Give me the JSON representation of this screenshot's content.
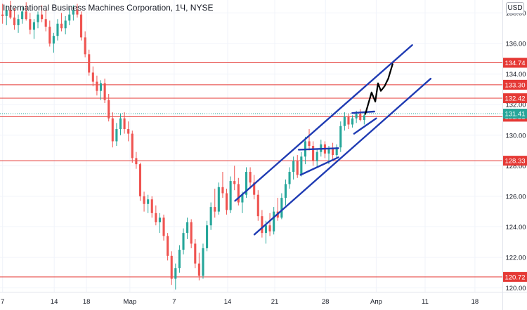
{
  "header": {
    "title": "International Business Machines Corporation, 1Ч, NYSE",
    "currency": "USD"
  },
  "colors": {
    "up": "#26a69a",
    "down": "#ef5350",
    "level_line": "#e53935",
    "channel": "#1f3bb3",
    "projection": "#000000",
    "axis_text": "#131722",
    "grid": "#f0f3fa",
    "last_price_green": "#26a69a",
    "label_red": "#e53935"
  },
  "chart_data": {
    "type": "candlestick",
    "symbol": "IBM",
    "interval": "1Ч",
    "exchange": "NYSE",
    "ylim": [
      119.75,
      138.85
    ],
    "y_ticks": [
      120.0,
      122.0,
      124.0,
      126.0,
      128.0,
      130.0,
      132.0,
      134.0,
      136.0,
      138.0
    ],
    "x_ticks": [
      "7",
      "14",
      "18",
      "Мар",
      "7",
      "14",
      "21",
      "28",
      "Апр",
      "11",
      "18"
    ],
    "x_tick_index": [
      0,
      56,
      91,
      138,
      186,
      244,
      295,
      350,
      405,
      458,
      512
    ],
    "total_bars": 540,
    "horizontal_levels": [
      134.74,
      133.3,
      132.42,
      131.21,
      128.33,
      120.72
    ],
    "last_price": 131.41,
    "candles_ohlc": [
      [
        137.9,
        138.6,
        137.3,
        137.8
      ],
      [
        137.8,
        138.5,
        137.2,
        138.2
      ],
      [
        138.2,
        138.8,
        137.6,
        137.7
      ],
      [
        137.7,
        138.3,
        136.9,
        137.2
      ],
      [
        137.2,
        137.9,
        136.7,
        137.6
      ],
      [
        137.6,
        138.4,
        137.3,
        138.1
      ],
      [
        138.1,
        138.7,
        137.5,
        137.6
      ],
      [
        137.6,
        138.0,
        136.6,
        136.9
      ],
      [
        136.9,
        137.6,
        136.3,
        137.4
      ],
      [
        137.4,
        138.1,
        137.0,
        137.9
      ],
      [
        137.9,
        138.5,
        137.4,
        137.6
      ],
      [
        137.6,
        138.2,
        136.8,
        137.1
      ],
      [
        137.1,
        137.5,
        135.8,
        136.0
      ],
      [
        136.0,
        136.7,
        135.4,
        136.5
      ],
      [
        136.5,
        137.6,
        136.2,
        137.3
      ],
      [
        137.3,
        138.0,
        136.8,
        137.0
      ],
      [
        137.0,
        137.8,
        136.6,
        137.5
      ],
      [
        137.5,
        138.3,
        137.2,
        137.9
      ],
      [
        137.9,
        138.5,
        137.5,
        138.2
      ],
      [
        138.2,
        138.6,
        137.7,
        137.9
      ],
      [
        137.9,
        138.1,
        136.2,
        136.4
      ],
      [
        136.4,
        136.8,
        135.1,
        135.3
      ],
      [
        135.3,
        135.6,
        133.9,
        134.1
      ],
      [
        134.1,
        134.5,
        133.2,
        133.5
      ],
      [
        133.5,
        133.9,
        132.6,
        132.9
      ],
      [
        132.9,
        133.6,
        132.3,
        133.4
      ],
      [
        133.4,
        133.7,
        132.1,
        132.3
      ],
      [
        132.3,
        132.7,
        130.9,
        131.1
      ],
      [
        131.1,
        131.5,
        129.2,
        129.6
      ],
      [
        129.6,
        130.8,
        129.3,
        130.4
      ],
      [
        130.4,
        131.4,
        130.0,
        131.1
      ],
      [
        131.1,
        131.5,
        130.1,
        130.4
      ],
      [
        130.4,
        130.9,
        129.6,
        130.1
      ],
      [
        130.1,
        130.3,
        128.2,
        128.5
      ],
      [
        128.5,
        128.9,
        127.8,
        128.1
      ],
      [
        128.1,
        128.2,
        125.7,
        126.0
      ],
      [
        126.0,
        126.3,
        125.0,
        125.5
      ],
      [
        125.5,
        126.1,
        124.9,
        125.8
      ],
      [
        125.8,
        126.0,
        124.6,
        124.9
      ],
      [
        124.9,
        125.4,
        124.1,
        124.3
      ],
      [
        124.3,
        124.9,
        123.6,
        124.6
      ],
      [
        124.6,
        124.8,
        123.1,
        123.4
      ],
      [
        123.4,
        123.6,
        121.8,
        122.1
      ],
      [
        122.1,
        122.4,
        120.2,
        120.6
      ],
      [
        120.6,
        121.6,
        119.9,
        121.3
      ],
      [
        121.3,
        122.8,
        121.0,
        122.5
      ],
      [
        122.5,
        123.9,
        122.2,
        123.6
      ],
      [
        123.6,
        124.6,
        123.2,
        124.3
      ],
      [
        124.3,
        124.5,
        122.6,
        122.9
      ],
      [
        122.9,
        123.2,
        121.3,
        121.6
      ],
      [
        121.6,
        122.3,
        120.5,
        120.8
      ],
      [
        120.8,
        122.9,
        120.6,
        122.6
      ],
      [
        122.6,
        124.4,
        122.4,
        124.1
      ],
      [
        124.1,
        125.6,
        123.8,
        125.3
      ],
      [
        125.3,
        126.5,
        124.6,
        125.0
      ],
      [
        125.0,
        126.9,
        124.8,
        126.6
      ],
      [
        126.6,
        127.6,
        125.9,
        126.2
      ],
      [
        126.2,
        126.5,
        124.8,
        125.1
      ],
      [
        125.1,
        127.3,
        124.9,
        127.0
      ],
      [
        127.0,
        128.0,
        126.4,
        126.8
      ],
      [
        126.8,
        127.2,
        125.4,
        125.6
      ],
      [
        125.6,
        126.3,
        124.9,
        126.1
      ],
      [
        126.1,
        127.9,
        125.9,
        127.6
      ],
      [
        127.6,
        127.9,
        126.5,
        126.9
      ],
      [
        126.9,
        127.4,
        125.8,
        126.1
      ],
      [
        126.1,
        126.4,
        124.4,
        124.7
      ],
      [
        124.7,
        125.1,
        123.3,
        123.6
      ],
      [
        123.6,
        124.4,
        122.9,
        124.1
      ],
      [
        124.1,
        124.9,
        123.4,
        123.7
      ],
      [
        123.7,
        125.3,
        123.5,
        125.0
      ],
      [
        125.0,
        125.9,
        124.4,
        124.6
      ],
      [
        124.6,
        126.2,
        124.5,
        125.9
      ],
      [
        125.9,
        127.1,
        125.4,
        126.8
      ],
      [
        126.8,
        127.9,
        126.5,
        127.6
      ],
      [
        127.6,
        128.6,
        127.1,
        128.3
      ],
      [
        128.3,
        128.7,
        127.2,
        127.4
      ],
      [
        127.4,
        128.9,
        127.3,
        128.6
      ],
      [
        128.6,
        129.9,
        128.1,
        129.6
      ],
      [
        129.6,
        130.4,
        129.0,
        129.3
      ],
      [
        129.3,
        129.6,
        128.0,
        128.3
      ],
      [
        128.3,
        129.1,
        127.9,
        128.9
      ],
      [
        128.9,
        129.7,
        128.6,
        129.4
      ],
      [
        129.4,
        129.6,
        128.5,
        128.8
      ],
      [
        128.8,
        129.3,
        128.1,
        129.1
      ],
      [
        129.1,
        129.5,
        128.4,
        128.7
      ],
      [
        128.7,
        129.4,
        128.5,
        129.2
      ],
      [
        129.2,
        130.9,
        128.9,
        130.6
      ],
      [
        130.6,
        131.5,
        130.3,
        131.2
      ],
      [
        131.2,
        131.4,
        130.4,
        130.7
      ],
      [
        130.7,
        131.3,
        130.5,
        131.1
      ],
      [
        131.1,
        131.6,
        130.8,
        131.4
      ],
      [
        131.4,
        131.7,
        130.9,
        131.0
      ],
      [
        131.0,
        131.5,
        130.7,
        131.3
      ]
    ],
    "channel_lines": [
      {
        "name": "upper",
        "from": [
          252,
          125.7
        ],
        "to": [
          444,
          135.9
        ]
      },
      {
        "name": "lower",
        "from": [
          273,
          123.5
        ],
        "to": [
          464,
          133.7
        ]
      },
      {
        "name": "flag1-top",
        "from": [
          321,
          129.05
        ],
        "to": [
          364,
          129.15
        ]
      },
      {
        "name": "flag1-bottom",
        "from": [
          323,
          127.4
        ],
        "to": [
          364,
          128.55
        ]
      },
      {
        "name": "flag2-top",
        "from": [
          379,
          131.45
        ],
        "to": [
          403,
          131.55
        ]
      },
      {
        "name": "flag2-bottom",
        "from": [
          381,
          130.1
        ],
        "to": [
          405,
          131.1
        ]
      }
    ],
    "projection_path": [
      [
        393,
        131.35
      ],
      [
        400,
        132.8
      ],
      [
        404,
        132.2
      ],
      [
        407,
        133.4
      ],
      [
        410,
        132.9
      ],
      [
        414,
        133.2
      ],
      [
        418,
        133.7
      ],
      [
        423,
        134.7
      ]
    ]
  }
}
